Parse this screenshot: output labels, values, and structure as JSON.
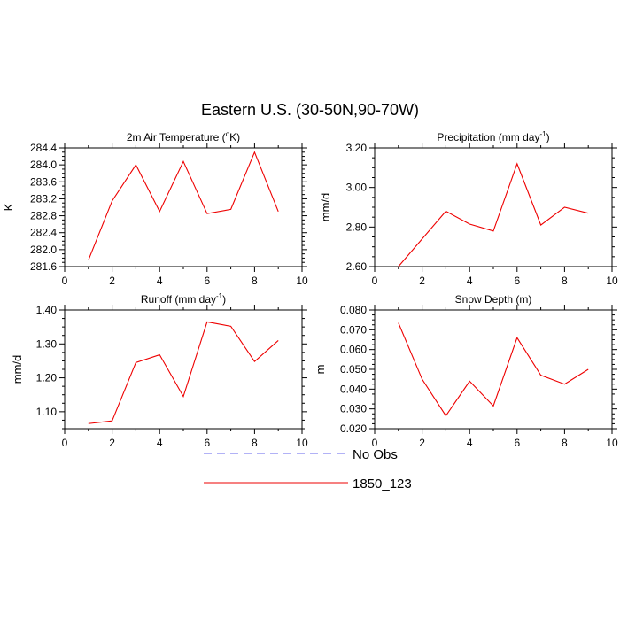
{
  "figure": {
    "title": "Eastern U.S. (30-50N,90-70W)"
  },
  "legend": {
    "position": "bottom-center",
    "items": [
      {
        "label": "No Obs",
        "style": "dashed",
        "color": "#6666ee"
      },
      {
        "label": "1850_123",
        "style": "solid",
        "color": "#ee0000"
      }
    ]
  },
  "chart_data": [
    {
      "type": "line",
      "title_main": "2m Air Temperature (",
      "title_sup": "o",
      "title_tail": "K)",
      "ylabel": "K",
      "xlim": [
        0,
        10
      ],
      "ylim": [
        281.6,
        284.4
      ],
      "xticks": [
        0,
        2,
        4,
        6,
        8,
        10
      ],
      "yticks": [
        281.6,
        282.0,
        282.4,
        282.8,
        283.2,
        283.6,
        284.0,
        284.4
      ],
      "ytick_labels": [
        "281.6",
        "282.0",
        "282.4",
        "282.8",
        "283.2",
        "283.6",
        "284.0",
        "284.4"
      ],
      "series": [
        {
          "name": "1850_123",
          "color": "#ee0000",
          "x": [
            1,
            2,
            3,
            4,
            5,
            6,
            7,
            8,
            9
          ],
          "y": [
            281.75,
            283.15,
            284.0,
            282.9,
            284.08,
            282.85,
            282.95,
            284.3,
            282.9
          ]
        }
      ]
    },
    {
      "type": "line",
      "title_main": "Precipitation (mm day",
      "title_sup": "-1",
      "title_tail": ")",
      "ylabel": "mm/d",
      "xlim": [
        0,
        10
      ],
      "ylim": [
        2.6,
        3.2
      ],
      "xticks": [
        0,
        2,
        4,
        6,
        8,
        10
      ],
      "yticks": [
        2.6,
        2.8,
        3.0,
        3.2
      ],
      "ytick_labels": [
        "2.60",
        "2.80",
        "3.00",
        "3.20"
      ],
      "series": [
        {
          "name": "1850_123",
          "color": "#ee0000",
          "x": [
            1,
            2,
            3,
            4,
            5,
            6,
            7,
            8,
            9
          ],
          "y": [
            2.6,
            2.74,
            2.88,
            2.815,
            2.78,
            3.12,
            2.81,
            2.9,
            2.87
          ]
        }
      ]
    },
    {
      "type": "line",
      "title_main": "Runoff (mm day",
      "title_sup": "-1",
      "title_tail": ")",
      "ylabel": "mm/d",
      "xlim": [
        0,
        10
      ],
      "ylim": [
        1.05,
        1.4
      ],
      "xticks": [
        0,
        2,
        4,
        6,
        8,
        10
      ],
      "yticks": [
        1.1,
        1.2,
        1.3,
        1.4
      ],
      "ytick_labels": [
        "1.10",
        "1.20",
        "1.30",
        "1.40"
      ],
      "series": [
        {
          "name": "1850_123",
          "color": "#ee0000",
          "x": [
            1,
            2,
            3,
            4,
            5,
            6,
            7,
            8,
            9
          ],
          "y": [
            1.065,
            1.073,
            1.245,
            1.268,
            1.145,
            1.365,
            1.352,
            1.248,
            1.31
          ]
        }
      ]
    },
    {
      "type": "line",
      "title_main": "Snow Depth (m)",
      "title_sup": "",
      "title_tail": "",
      "ylabel": "m",
      "xlim": [
        0,
        10
      ],
      "ylim": [
        0.02,
        0.08
      ],
      "xticks": [
        0,
        2,
        4,
        6,
        8,
        10
      ],
      "yticks": [
        0.02,
        0.03,
        0.04,
        0.05,
        0.06,
        0.07,
        0.08
      ],
      "ytick_labels": [
        "0.020",
        "0.030",
        "0.040",
        "0.050",
        "0.060",
        "0.070",
        "0.080"
      ],
      "series": [
        {
          "name": "1850_123",
          "color": "#ee0000",
          "x": [
            1,
            2,
            3,
            4,
            5,
            6,
            7,
            8,
            9
          ],
          "y": [
            0.0735,
            0.045,
            0.0265,
            0.044,
            0.0315,
            0.066,
            0.047,
            0.0425,
            0.05
          ]
        }
      ]
    }
  ]
}
